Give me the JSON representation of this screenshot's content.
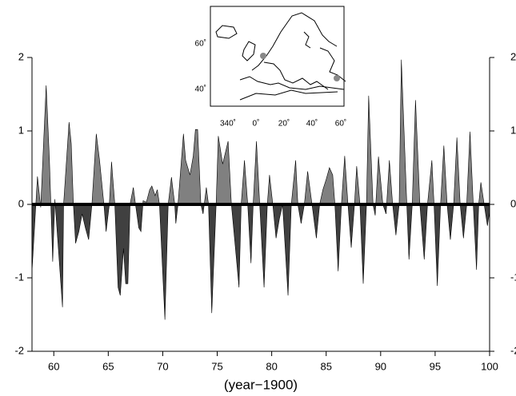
{
  "chart_data": {
    "type": "area",
    "xlabel": "(year−1900)",
    "x": [
      58.0,
      58.5,
      58.8,
      59.3,
      59.6,
      59.9,
      60.1,
      60.8,
      60.9,
      61.4,
      61.6,
      61.8,
      62.0,
      62.3,
      62.6,
      62.9,
      63.2,
      63.5,
      63.9,
      64.2,
      64.6,
      64.8,
      65.1,
      65.3,
      65.6,
      65.9,
      66.1,
      66.4,
      66.6,
      66.8,
      67.0,
      67.3,
      67.5,
      67.8,
      68.0,
      68.2,
      68.5,
      68.8,
      69.0,
      69.3,
      69.5,
      69.7,
      70.2,
      70.5,
      70.8,
      71.1,
      71.2,
      71.4,
      71.9,
      72.1,
      72.5,
      72.8,
      73.0,
      73.2,
      73.5,
      73.7,
      74.0,
      74.2,
      74.5,
      74.9,
      75.1,
      75.5,
      76.0,
      76.3,
      76.6,
      77.0,
      77.2,
      77.5,
      77.8,
      78.1,
      78.3,
      78.6,
      78.9,
      79.3,
      79.6,
      79.8,
      80.1,
      80.4,
      80.7,
      81.0,
      81.5,
      81.8,
      82.2,
      82.4,
      82.7,
      83.0,
      83.3,
      83.7,
      84.1,
      84.4,
      84.7,
      85.0,
      85.3,
      85.6,
      85.8,
      86.1,
      86.4,
      86.7,
      87.0,
      87.3,
      87.6,
      87.8,
      88.1,
      88.4,
      88.7,
      88.9,
      89.3,
      89.5,
      89.8,
      90.2,
      90.5,
      90.8,
      91.1,
      91.4,
      91.7,
      91.9,
      92.4,
      92.6,
      92.9,
      93.2,
      93.6,
      94.0,
      94.3,
      94.7,
      94.9,
      95.2,
      95.5,
      95.8,
      96.1,
      96.4,
      96.7,
      97.0,
      97.3,
      97.6,
      97.9,
      98.2,
      98.5,
      98.8,
      99.0,
      99.2,
      99.5,
      99.8,
      100.0
    ],
    "values": [
      -0.91,
      0.38,
      -0.04,
      1.62,
      0.6,
      -0.78,
      0.07,
      -1.4,
      0,
      1.12,
      0.83,
      0,
      -0.53,
      -0.37,
      -0.13,
      -0.32,
      -0.48,
      0,
      0.96,
      0.6,
      0,
      -0.37,
      0,
      0.58,
      0,
      -1.13,
      -1.24,
      -0.6,
      -1.08,
      -1.08,
      0,
      0.23,
      0,
      -0.32,
      -0.37,
      0.05,
      0.03,
      0.2,
      0.25,
      0.12,
      0.2,
      0,
      -1.57,
      0,
      0.37,
      0,
      -0.26,
      0,
      0.96,
      0.6,
      0.4,
      0.66,
      1.02,
      1.02,
      0,
      -0.13,
      0.23,
      0,
      -1.48,
      0,
      0.93,
      0.55,
      0.86,
      0,
      -0.48,
      -1.13,
      0,
      0.6,
      0,
      -0.8,
      0,
      0.86,
      0,
      -1.13,
      0,
      0.4,
      0,
      -0.46,
      -0.2,
      0,
      -1.24,
      0,
      0.6,
      0,
      -0.26,
      0,
      0.45,
      0,
      -0.46,
      0,
      0.2,
      0.34,
      0.5,
      0.4,
      0,
      -0.91,
      0,
      0.66,
      0,
      -0.59,
      0,
      0.52,
      0,
      -1.08,
      0,
      1.48,
      0,
      -0.15,
      0.65,
      0,
      -0.13,
      0.6,
      0,
      -0.42,
      0,
      1.97,
      0,
      -0.75,
      0,
      1.42,
      0,
      -0.75,
      0,
      0.6,
      0,
      -1.11,
      0,
      0.8,
      0,
      -0.48,
      0,
      0.91,
      0,
      -0.46,
      0,
      0.99,
      0,
      -0.89,
      0,
      0.3,
      0,
      -0.29,
      -0.1
    ],
    "pos_color": "#808080",
    "neg_color": "#404040",
    "xlim": [
      58,
      100
    ],
    "xticks": [
      60,
      65,
      70,
      75,
      80,
      85,
      90,
      95,
      100
    ],
    "ylim": [
      -2,
      2
    ],
    "yticks": [
      -2,
      -1,
      0,
      1,
      2
    ]
  },
  "inset": {
    "xtick_labels": [
      "340˚",
      "0˚",
      "20˚",
      "40˚",
      "60˚"
    ],
    "ytick_labels": [
      "60˚",
      "40˚"
    ]
  }
}
